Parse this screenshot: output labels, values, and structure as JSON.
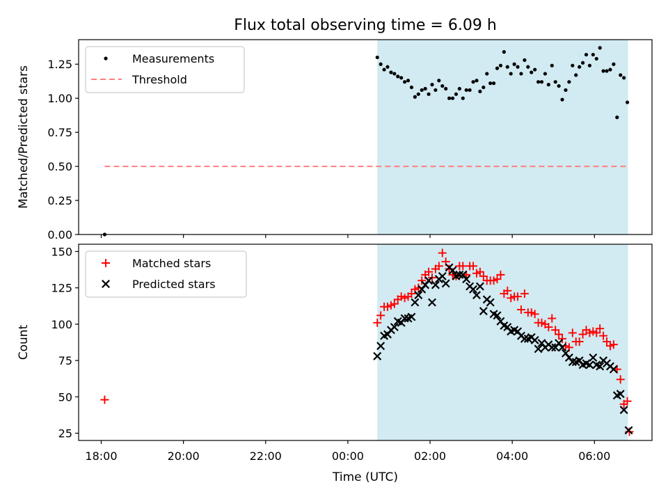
{
  "chart_data": {
    "title": "Flux total observing time = 6.09 h",
    "xlabel": "Time (UTC)",
    "x_ticks": [
      "18:00",
      "20:00",
      "22:00",
      "00:00",
      "02:00",
      "04:00",
      "06:00"
    ],
    "colors": {
      "shade": "#add8e6",
      "threshold": "#ff7f7f",
      "matched": "#ff0000",
      "predicted": "#000000",
      "measurement": "#000000"
    },
    "panels": [
      {
        "type": "scatter",
        "ylabel": "Matched/Predicted stars",
        "ylim": [
          0,
          1.43
        ],
        "y_ticks": [
          "0.00",
          "0.25",
          "0.50",
          "0.75",
          "1.00",
          "1.25"
        ],
        "shaded_interval": {
          "from": "00:43",
          "to": "06:49"
        },
        "legend": {
          "placement": "upper left",
          "entries": [
            "Measurements",
            "Threshold"
          ]
        },
        "threshold": {
          "name": "Threshold",
          "value": 0.5,
          "from": "18:05",
          "to": "06:49",
          "style": "dashed"
        },
        "series": [
          {
            "name": "Measurements",
            "marker": "dot",
            "points": [
              [
                "18:05",
                0.0
              ],
              [
                "00:43",
                1.3
              ],
              [
                "00:48",
                1.25
              ],
              [
                "00:53",
                1.21
              ],
              [
                "00:58",
                1.23
              ],
              [
                "01:03",
                1.19
              ],
              [
                "01:08",
                1.18
              ],
              [
                "01:13",
                1.16
              ],
              [
                "01:18",
                1.15
              ],
              [
                "01:23",
                1.12
              ],
              [
                "01:28",
                1.13
              ],
              [
                "01:33",
                1.08
              ],
              [
                "01:38",
                1.01
              ],
              [
                "01:43",
                1.03
              ],
              [
                "01:48",
                1.06
              ],
              [
                "01:53",
                1.07
              ],
              [
                "01:58",
                1.03
              ],
              [
                "02:03",
                1.1
              ],
              [
                "02:08",
                1.06
              ],
              [
                "02:13",
                1.13
              ],
              [
                "02:18",
                1.09
              ],
              [
                "02:23",
                1.07
              ],
              [
                "02:28",
                1.0
              ],
              [
                "02:33",
                1.0
              ],
              [
                "02:38",
                1.03
              ],
              [
                "02:43",
                1.07
              ],
              [
                "02:48",
                1.0
              ],
              [
                "02:53",
                1.06
              ],
              [
                "02:58",
                1.06
              ],
              [
                "03:03",
                1.12
              ],
              [
                "03:08",
                1.13
              ],
              [
                "03:13",
                1.05
              ],
              [
                "03:18",
                1.08
              ],
              [
                "03:23",
                1.18
              ],
              [
                "03:28",
                1.11
              ],
              [
                "03:33",
                1.11
              ],
              [
                "03:38",
                1.22
              ],
              [
                "03:43",
                1.24
              ],
              [
                "03:48",
                1.34
              ],
              [
                "03:53",
                1.23
              ],
              [
                "03:58",
                1.18
              ],
              [
                "04:03",
                1.25
              ],
              [
                "04:08",
                1.23
              ],
              [
                "04:13",
                1.18
              ],
              [
                "04:18",
                1.28
              ],
              [
                "04:23",
                1.23
              ],
              [
                "04:28",
                1.19
              ],
              [
                "04:33",
                1.21
              ],
              [
                "04:38",
                1.12
              ],
              [
                "04:43",
                1.12
              ],
              [
                "04:48",
                1.18
              ],
              [
                "04:53",
                1.1
              ],
              [
                "04:58",
                1.24
              ],
              [
                "05:03",
                1.12
              ],
              [
                "05:08",
                1.09
              ],
              [
                "05:13",
                0.99
              ],
              [
                "05:18",
                1.06
              ],
              [
                "05:23",
                1.12
              ],
              [
                "05:28",
                1.24
              ],
              [
                "05:33",
                1.17
              ],
              [
                "05:38",
                1.23
              ],
              [
                "05:43",
                1.26
              ],
              [
                "05:48",
                1.32
              ],
              [
                "05:53",
                1.24
              ],
              [
                "05:58",
                1.32
              ],
              [
                "06:03",
                1.29
              ],
              [
                "06:08",
                1.37
              ],
              [
                "06:13",
                1.2
              ],
              [
                "06:18",
                1.2
              ],
              [
                "06:23",
                1.21
              ],
              [
                "06:28",
                1.25
              ],
              [
                "06:33",
                0.86
              ],
              [
                "06:38",
                1.17
              ],
              [
                "06:43",
                1.15
              ],
              [
                "06:48",
                0.97
              ]
            ]
          }
        ]
      },
      {
        "type": "scatter",
        "ylabel": "Count",
        "ylim": [
          20,
          155
        ],
        "y_ticks": [
          "25",
          "50",
          "75",
          "100",
          "125",
          "150"
        ],
        "shaded_interval": {
          "from": "00:43",
          "to": "06:49"
        },
        "legend": {
          "placement": "upper left",
          "entries": [
            "Matched stars",
            "Predicted stars"
          ]
        },
        "series": [
          {
            "name": "Matched stars",
            "marker": "plus",
            "points": [
              [
                "18:05",
                48
              ],
              [
                "00:43",
                101
              ],
              [
                "00:48",
                106
              ],
              [
                "00:53",
                112
              ],
              [
                "00:58",
                112
              ],
              [
                "01:03",
                113
              ],
              [
                "01:08",
                114
              ],
              [
                "01:13",
                117
              ],
              [
                "01:18",
                119
              ],
              [
                "01:23",
                118
              ],
              [
                "01:28",
                119
              ],
              [
                "01:33",
                121
              ],
              [
                "01:38",
                124
              ],
              [
                "01:43",
                125
              ],
              [
                "01:48",
                130
              ],
              [
                "01:53",
                134
              ],
              [
                "01:58",
                136
              ],
              [
                "02:03",
                132
              ],
              [
                "02:08",
                138
              ],
              [
                "02:13",
                140
              ],
              [
                "02:18",
                149
              ],
              [
                "02:23",
                143
              ],
              [
                "02:28",
                138
              ],
              [
                "02:33",
                134
              ],
              [
                "02:38",
                133
              ],
              [
                "02:43",
                140
              ],
              [
                "02:48",
                140
              ],
              [
                "02:53",
                134
              ],
              [
                "02:58",
                140
              ],
              [
                "03:03",
                140
              ],
              [
                "03:08",
                135
              ],
              [
                "03:13",
                136
              ],
              [
                "03:18",
                133
              ],
              [
                "03:23",
                130
              ],
              [
                "03:28",
                130
              ],
              [
                "03:33",
                130
              ],
              [
                "03:38",
                131
              ],
              [
                "03:43",
                134
              ],
              [
                "03:48",
                121
              ],
              [
                "03:53",
                123
              ],
              [
                "03:58",
                118
              ],
              [
                "04:03",
                119
              ],
              [
                "04:08",
                119
              ],
              [
                "04:13",
                110
              ],
              [
                "04:18",
                121
              ],
              [
                "04:23",
                108
              ],
              [
                "04:28",
                108
              ],
              [
                "04:33",
                107
              ],
              [
                "04:38",
                101
              ],
              [
                "04:43",
                101
              ],
              [
                "04:48",
                100
              ],
              [
                "04:53",
                98
              ],
              [
                "04:58",
                104
              ],
              [
                "05:03",
                96
              ],
              [
                "05:08",
                93
              ],
              [
                "05:13",
                90
              ],
              [
                "05:18",
                85
              ],
              [
                "05:23",
                84
              ],
              [
                "05:28",
                94
              ],
              [
                "05:33",
                88
              ],
              [
                "05:38",
                88
              ],
              [
                "05:43",
                93
              ],
              [
                "05:48",
                96
              ],
              [
                "05:53",
                94
              ],
              [
                "05:58",
                95
              ],
              [
                "06:03",
                94
              ],
              [
                "06:08",
                97
              ],
              [
                "06:13",
                92
              ],
              [
                "06:18",
                88
              ],
              [
                "06:23",
                85
              ],
              [
                "06:28",
                86
              ],
              [
                "06:33",
                69
              ],
              [
                "06:38",
                62
              ],
              [
                "06:43",
                45
              ],
              [
                "06:48",
                47
              ],
              [
                "06:51",
                26
              ]
            ]
          },
          {
            "name": "Predicted stars",
            "marker": "x",
            "points": [
              [
                "00:43",
                78
              ],
              [
                "00:48",
                85
              ],
              [
                "00:53",
                92
              ],
              [
                "00:58",
                93
              ],
              [
                "01:03",
                96
              ],
              [
                "01:08",
                98
              ],
              [
                "01:13",
                102
              ],
              [
                "01:18",
                101
              ],
              [
                "01:23",
                104
              ],
              [
                "01:28",
                104
              ],
              [
                "01:33",
                105
              ],
              [
                "01:38",
                115
              ],
              [
                "01:43",
                120
              ],
              [
                "01:48",
                124
              ],
              [
                "01:53",
                127
              ],
              [
                "01:58",
                130
              ],
              [
                "02:03",
                115
              ],
              [
                "02:08",
                127
              ],
              [
                "02:13",
                131
              ],
              [
                "02:18",
                133
              ],
              [
                "02:23",
                128
              ],
              [
                "02:28",
                139
              ],
              [
                "02:33",
                137
              ],
              [
                "02:38",
                133
              ],
              [
                "02:43",
                134
              ],
              [
                "02:48",
                134
              ],
              [
                "02:53",
                131
              ],
              [
                "02:58",
                126
              ],
              [
                "03:03",
                124
              ],
              [
                "03:08",
                120
              ],
              [
                "03:13",
                126
              ],
              [
                "03:18",
                109
              ],
              [
                "03:23",
                117
              ],
              [
                "03:28",
                115
              ],
              [
                "03:33",
                107
              ],
              [
                "03:38",
                106
              ],
              [
                "03:43",
                102
              ],
              [
                "03:48",
                99
              ],
              [
                "03:53",
                98
              ],
              [
                "03:58",
                95
              ],
              [
                "04:03",
                96
              ],
              [
                "04:08",
                95
              ],
              [
                "04:13",
                92
              ],
              [
                "04:18",
                90
              ],
              [
                "04:23",
                90
              ],
              [
                "04:28",
                91
              ],
              [
                "04:33",
                89
              ],
              [
                "04:38",
                83
              ],
              [
                "04:43",
                87
              ],
              [
                "04:48",
                84
              ],
              [
                "04:53",
                86
              ],
              [
                "04:58",
                84
              ],
              [
                "05:03",
                84
              ],
              [
                "05:08",
                87
              ],
              [
                "05:13",
                84
              ],
              [
                "05:18",
                80
              ],
              [
                "05:23",
                77
              ],
              [
                "05:28",
                74
              ],
              [
                "05:33",
                74
              ],
              [
                "05:38",
                75
              ],
              [
                "05:43",
                72
              ],
              [
                "05:48",
                73
              ],
              [
                "05:53",
                72
              ],
              [
                "05:58",
                77
              ],
              [
                "06:03",
                72
              ],
              [
                "06:08",
                71
              ],
              [
                "06:13",
                75
              ],
              [
                "06:18",
                73
              ],
              [
                "06:23",
                71
              ],
              [
                "06:28",
                69
              ],
              [
                "06:33",
                51
              ],
              [
                "06:38",
                52
              ],
              [
                "06:43",
                41
              ],
              [
                "06:50",
                27
              ]
            ]
          }
        ]
      }
    ]
  }
}
